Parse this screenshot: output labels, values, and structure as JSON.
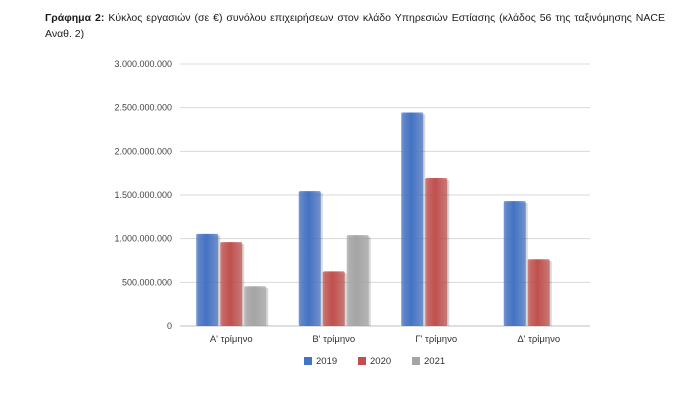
{
  "caption": {
    "label": "Γράφημα 2:",
    "text": "Κύκλος εργασιών (σε €) συνόλου επιχειρήσεων στον κλάδο Υπηρεσιών Εστίασης (κλάδος 56 της ταξινόμησης NACE Αναθ. 2)"
  },
  "chart_data": {
    "type": "bar",
    "categories": [
      "Α' τρίμηνο",
      "Β' τρίμηνο",
      "Γ' τρίμηνο",
      "Δ' τρίμηνο"
    ],
    "series": [
      {
        "name": "2019",
        "color": "#4472C4",
        "values": [
          1055000000,
          1545000000,
          2445000000,
          1430000000
        ]
      },
      {
        "name": "2020",
        "color": "#C0504D",
        "values": [
          960000000,
          625000000,
          1695000000,
          765000000
        ]
      },
      {
        "name": "2021",
        "color": "#A5A5A5",
        "values": [
          455000000,
          1040000000,
          null,
          null
        ]
      }
    ],
    "ylim": [
      0,
      3000000000
    ],
    "yticks": [
      "0",
      "500.000.000",
      "1.000.000.000",
      "1.500.000.000",
      "2.000.000.000",
      "2.500.000.000",
      "3.000.000.000"
    ],
    "grid": true,
    "legend_position": "bottom"
  }
}
